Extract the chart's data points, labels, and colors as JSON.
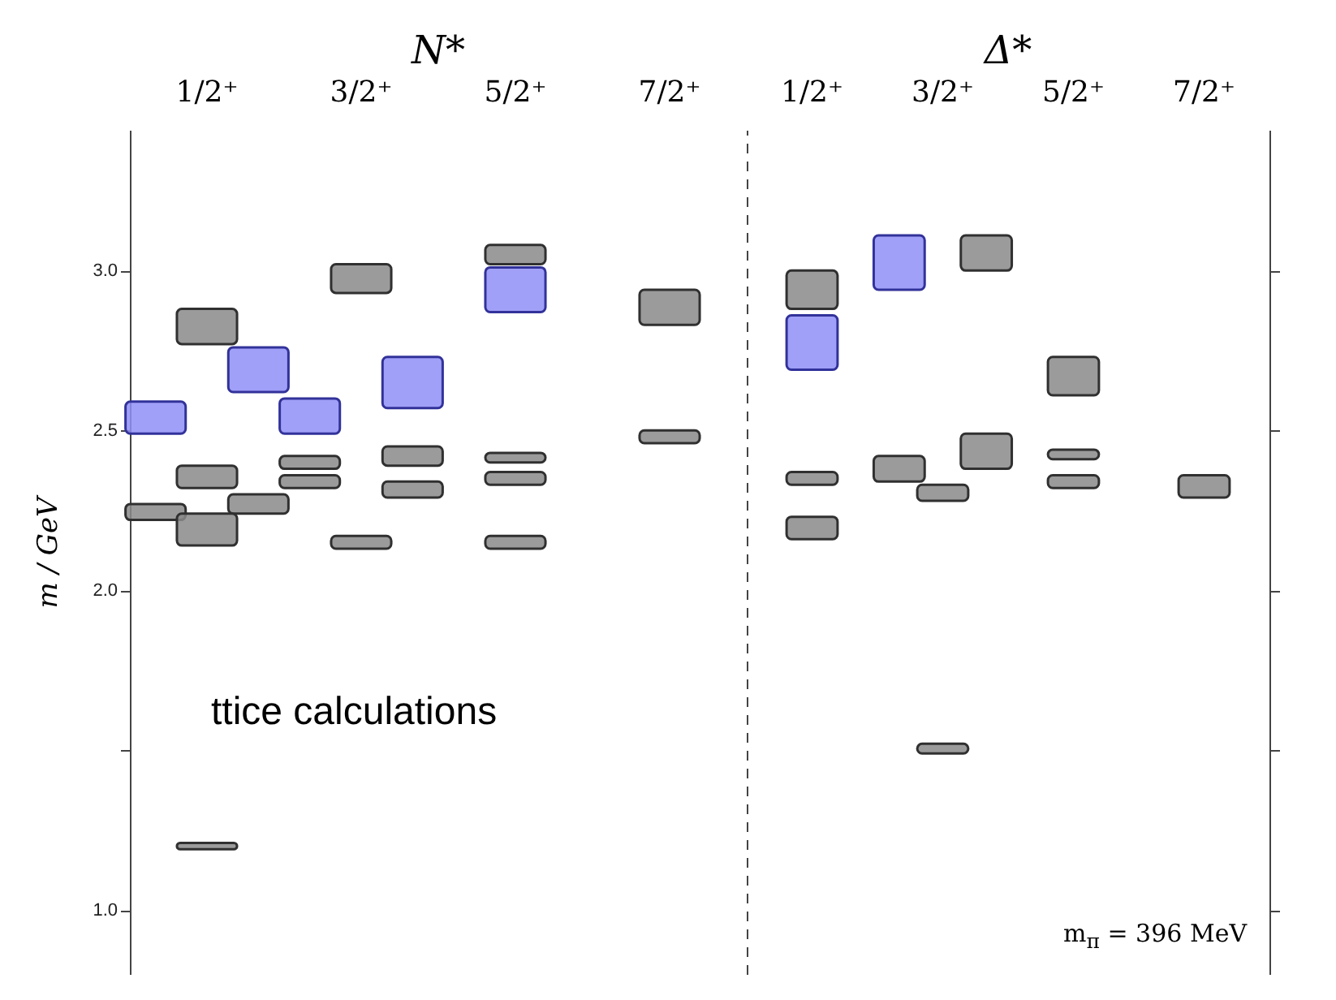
{
  "chart_data": [
    {
      "type": "bar",
      "title": "N*",
      "ylabel": "m / GeV",
      "categories": [
        null,
        "1/2⁺",
        null,
        null,
        "3/2⁺",
        null,
        null,
        "5/2⁺",
        null,
        null,
        "7/2⁺",
        null
      ],
      "ylim": [
        0.8,
        3.44
      ],
      "yticks": [
        {
          "value": 1,
          "label": "1.0"
        },
        {
          "value": 1.5,
          "label": null
        },
        {
          "value": 2,
          "label": "2.0"
        },
        {
          "value": 2.5,
          "label": "2.5"
        },
        {
          "value": 3,
          "label": "3.0"
        }
      ],
      "annotations": [
        "ttice calculations"
      ],
      "series": [
        {
          "color": "#8a8a8a",
          "base": [
            2.22,
            2.77,
            2.24,
            2.38,
            2.93,
            2.39,
            null,
            3.02,
            null,
            null,
            2.83,
            null
          ],
          "values": [
            0.05,
            0.11,
            0.06,
            0.04,
            0.09,
            0.06,
            null,
            0.06,
            null,
            null,
            0.11,
            null
          ]
        },
        {
          "color": "#8a8a8a",
          "base": [
            null,
            2.32,
            null,
            2.32,
            2.13,
            2.29,
            null,
            2.4,
            null,
            null,
            2.46,
            null
          ],
          "values": [
            null,
            0.07,
            null,
            0.04,
            0.04,
            0.05,
            null,
            0.03,
            null,
            null,
            0.04,
            null
          ]
        },
        {
          "color": "#8a8a8a",
          "base": [
            null,
            2.14,
            null,
            null,
            null,
            null,
            null,
            2.33,
            null,
            null,
            null,
            null
          ],
          "values": [
            null,
            0.1,
            null,
            null,
            null,
            null,
            null,
            0.04,
            null,
            null,
            null,
            null
          ]
        },
        {
          "color": "#8a8a8a",
          "base": [
            null,
            1.19,
            null,
            null,
            null,
            null,
            null,
            2.13,
            null,
            null,
            null,
            null
          ],
          "values": [
            null,
            0.02,
            null,
            null,
            null,
            null,
            null,
            0.04,
            null,
            null,
            null,
            null
          ]
        },
        {
          "color": "#8f8ff7",
          "base": [
            2.49,
            null,
            2.62,
            2.49,
            null,
            2.57,
            null,
            2.87,
            null,
            null,
            null,
            null
          ],
          "values": [
            0.1,
            null,
            0.14,
            0.11,
            null,
            0.16,
            null,
            0.14,
            null,
            null,
            null,
            null
          ]
        }
      ]
    },
    {
      "type": "bar",
      "title": "Δ*",
      "categories": [
        null,
        "1/2⁺",
        null,
        null,
        "3/2⁺",
        null,
        null,
        "5/2⁺",
        null,
        null,
        "7/2⁺",
        null
      ],
      "ylim": [
        0.8,
        3.44
      ],
      "yticks": [
        1,
        1.5,
        2,
        2.5,
        3
      ],
      "tick_labels": "x",
      "annotations": [
        "m$_{π}$ = 396 MeV"
      ],
      "series": [
        {
          "color": "#8a8a8a",
          "base": [
            null,
            2.88,
            null,
            2.34,
            2.28,
            3.0,
            null,
            2.61,
            null,
            null,
            2.29,
            null
          ],
          "values": [
            null,
            0.12,
            null,
            0.08,
            0.05,
            0.11,
            null,
            0.12,
            null,
            null,
            0.07,
            null
          ]
        },
        {
          "color": "#8a8a8a",
          "base": [
            null,
            2.33,
            null,
            null,
            1.49,
            2.38,
            null,
            2.41,
            null,
            null,
            null,
            null
          ],
          "values": [
            null,
            0.04,
            null,
            null,
            0.03,
            0.11,
            null,
            0.03,
            null,
            null,
            null,
            null
          ]
        },
        {
          "color": "#8a8a8a",
          "base": [
            null,
            2.16,
            null,
            null,
            null,
            null,
            null,
            2.32,
            null,
            null,
            null,
            null
          ],
          "values": [
            null,
            0.07,
            null,
            null,
            null,
            null,
            null,
            0.04,
            null,
            null,
            null,
            null
          ]
        },
        {
          "color": "#8f8ff7",
          "base": [
            null,
            2.69,
            null,
            2.94,
            null,
            null,
            null,
            null,
            null,
            null,
            null,
            null
          ],
          "values": [
            null,
            0.17,
            null,
            0.17,
            null,
            null,
            null,
            null,
            null,
            null,
            null,
            null
          ]
        }
      ]
    }
  ]
}
